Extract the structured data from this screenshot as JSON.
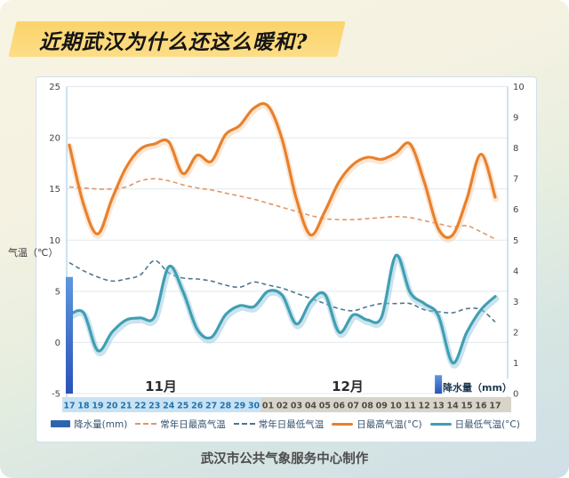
{
  "title": {
    "text": "近期武汉为什么还这么暖和?"
  },
  "caption": "武汉市公共气象服务中心制作",
  "axes": {
    "left_label": "气温（℃）",
    "left_ticks": [
      25,
      20,
      15,
      10,
      5,
      0,
      -5
    ],
    "right_ticks": [
      10,
      9,
      8,
      7,
      6,
      5,
      4,
      3,
      2,
      1,
      0
    ],
    "precip_label": "降水量（mm）",
    "month_labels": [
      "11月",
      "12月"
    ]
  },
  "legend": [
    {
      "label": "降水量(mm)",
      "type": "bar",
      "color": "#2e64ae"
    },
    {
      "label": "常年日最高气温",
      "type": "dashed",
      "color": "#df9668"
    },
    {
      "label": "常年日最低气温",
      "type": "dashed",
      "color": "#4f7690"
    },
    {
      "label": "日最高气温(°C)",
      "type": "line",
      "color": "#e8802b"
    },
    {
      "label": "日最低气温(°C)",
      "type": "line",
      "color": "#3f9fb2"
    }
  ],
  "colors": {
    "banner_yellow": "#fbd36a",
    "nov_band": "#c9e2f3",
    "nov_text": "#1f74b0",
    "dec_band": "#d8d4ca",
    "dec_text": "#4f4c44",
    "grid": "#e1e8ee",
    "axis_line": "#aecfe6",
    "bar_top": "#5e97dd",
    "bar_bottom": "#2a52b8"
  },
  "chart_data": {
    "type": "line+bar",
    "categories": [
      "17",
      "18",
      "19",
      "20",
      "21",
      "22",
      "23",
      "24",
      "25",
      "26",
      "27",
      "28",
      "29",
      "30",
      "01",
      "02",
      "03",
      "04",
      "05",
      "06",
      "07",
      "08",
      "09",
      "10",
      "11",
      "12",
      "13",
      "14",
      "15",
      "16",
      "17"
    ],
    "months": [
      {
        "label": "11月",
        "days": 14
      },
      {
        "label": "12月",
        "days": 17
      }
    ],
    "ylabel_left": "气温（℃）",
    "ylabel_right": "降水量（mm）",
    "ylim_left": [
      -5,
      25
    ],
    "ylim_right": [
      0,
      10
    ],
    "grid": "horizontal-only",
    "legend_position": "bottom",
    "series": [
      {
        "name": "日最高气温(°C)",
        "style": "solid",
        "color": "#e8802b",
        "values": [
          19.3,
          13.5,
          10.6,
          14.0,
          17.1,
          18.9,
          19.4,
          19.6,
          16.5,
          18.3,
          17.7,
          20.3,
          21.2,
          22.9,
          23.1,
          19.8,
          14.0,
          10.5,
          12.8,
          15.7,
          17.4,
          18.1,
          17.9,
          18.5,
          19.4,
          15.7,
          11.1,
          10.5,
          14.0,
          18.4,
          14.2
        ]
      },
      {
        "name": "常年日最高气温",
        "style": "dashed",
        "color": "#df9668",
        "values": [
          15.2,
          15.1,
          15.0,
          15.0,
          15.2,
          15.8,
          16.0,
          15.8,
          15.4,
          15.1,
          14.9,
          14.6,
          14.3,
          14.0,
          13.6,
          13.2,
          12.8,
          12.4,
          12.1,
          12.0,
          12.0,
          12.1,
          12.2,
          12.3,
          12.2,
          11.9,
          11.6,
          11.3,
          11.4,
          10.8,
          10.1
        ]
      },
      {
        "name": "常年日最低气温",
        "style": "dashed",
        "color": "#4f7690",
        "values": [
          7.8,
          7.0,
          6.4,
          6.0,
          6.2,
          6.6,
          8.0,
          6.8,
          6.3,
          6.2,
          6.0,
          5.6,
          5.4,
          5.9,
          5.6,
          5.3,
          4.8,
          4.3,
          3.8,
          3.3,
          3.1,
          3.5,
          3.8,
          3.8,
          3.8,
          3.2,
          3.0,
          2.9,
          3.3,
          3.2,
          2.0
        ]
      },
      {
        "name": "日最低气温(°C)",
        "style": "solid",
        "color": "#3f9fb2",
        "values": [
          2.7,
          2.9,
          -0.8,
          1.0,
          2.2,
          2.4,
          2.5,
          7.4,
          5.0,
          1.3,
          0.5,
          2.7,
          3.6,
          3.5,
          5.0,
          4.6,
          1.8,
          4.0,
          4.7,
          1.0,
          2.7,
          2.2,
          2.5,
          8.5,
          4.9,
          3.8,
          2.6,
          -2.0,
          1.0,
          3.2,
          4.5
        ]
      }
    ],
    "bars": {
      "name": "降水量(mm)",
      "axis": "right",
      "values": [
        3.8,
        0,
        0,
        0,
        0,
        0,
        0,
        0,
        0,
        0,
        0,
        0,
        0,
        0,
        0,
        0,
        0,
        0,
        0,
        0,
        0,
        0,
        0,
        0,
        0,
        0,
        0.6,
        0,
        0,
        0,
        0
      ]
    }
  }
}
